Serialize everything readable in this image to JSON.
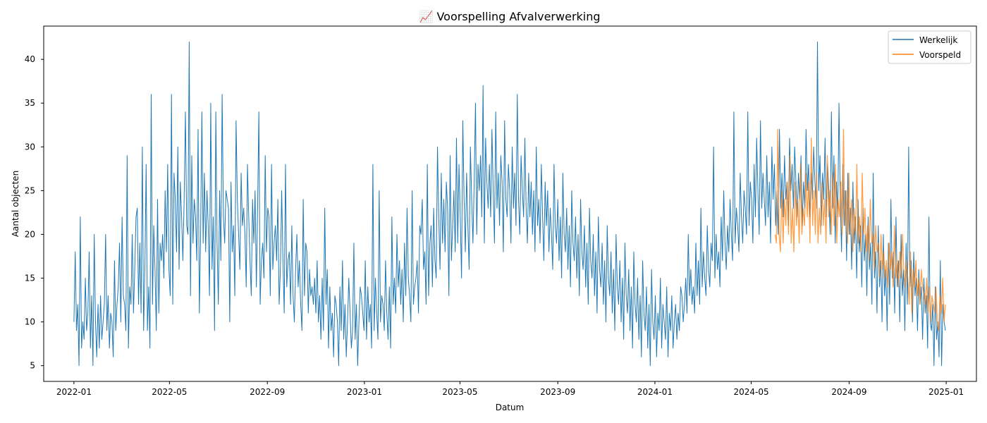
{
  "chart_data": {
    "type": "line",
    "title": "📈 Voorspelling Afvalverwerking",
    "xlabel": "Datum",
    "ylabel": "Aantal objecten",
    "xlim": [
      "2021-11-24",
      "2025-02-08"
    ],
    "ylim": [
      3.2,
      43.8
    ],
    "grid": false,
    "legend_position": "top-right",
    "x_ticks": [
      "2022-01",
      "2022-05",
      "2022-09",
      "2023-01",
      "2023-05",
      "2023-09",
      "2024-01",
      "2024-05",
      "2024-09",
      "2025-01"
    ],
    "y_ticks": [
      5,
      10,
      15,
      20,
      25,
      30,
      35,
      40
    ],
    "series": [
      {
        "name": "Werkelijk",
        "color": "#1f77b4",
        "x_start": "2022-01-01",
        "x_end": "2024-12-31",
        "values": [
          10,
          18,
          9,
          12,
          5,
          22,
          7,
          10,
          8,
          15,
          9,
          11,
          18,
          7,
          13,
          5,
          20,
          10,
          6,
          12,
          7,
          13,
          8,
          10,
          12,
          20,
          9,
          13,
          7,
          11,
          10,
          6,
          17,
          9,
          12,
          14,
          19,
          10,
          22,
          13,
          12,
          9,
          29,
          7,
          14,
          12,
          20,
          11,
          16,
          22,
          23,
          12,
          19,
          11,
          30,
          9,
          16,
          28,
          9,
          14,
          7,
          36,
          12,
          21,
          16,
          9,
          24,
          11,
          19,
          17,
          20,
          15,
          25,
          18,
          28,
          16,
          13,
          36,
          12,
          27,
          24,
          18,
          30,
          16,
          26,
          22,
          17,
          24,
          34,
          21,
          20,
          42,
          13,
          29,
          19,
          24,
          22,
          17,
          32,
          11,
          20,
          34,
          19,
          27,
          18,
          25,
          21,
          13,
          35,
          16,
          22,
          9,
          34,
          19,
          12,
          25,
          17,
          36,
          22,
          19,
          25,
          24,
          23,
          10,
          26,
          18,
          21,
          13,
          33,
          24,
          20,
          16,
          27,
          21,
          23,
          20,
          14,
          28,
          22,
          17,
          13,
          24,
          19,
          25,
          14,
          23,
          34,
          12,
          17,
          19,
          15,
          29,
          18,
          23,
          22,
          13,
          28,
          16,
          19,
          21,
          17,
          24,
          12,
          16,
          25,
          17,
          11,
          28,
          14,
          17,
          18,
          12,
          21,
          13,
          10,
          16,
          20,
          14,
          17,
          12,
          9,
          24,
          13,
          19,
          18,
          11,
          16,
          13,
          14,
          12,
          15,
          11,
          17,
          10,
          13,
          8,
          15,
          9,
          23,
          12,
          16,
          7,
          14,
          9,
          11,
          6,
          13,
          12,
          10,
          5,
          14,
          9,
          17,
          8,
          12,
          6,
          10,
          15,
          11,
          7,
          9,
          19,
          8,
          12,
          5,
          10,
          14,
          13,
          11,
          9,
          17,
          8,
          14,
          10,
          12,
          7,
          28,
          9,
          15,
          11,
          8,
          25,
          10,
          13,
          12,
          9,
          17,
          11,
          8,
          14,
          7,
          22,
          12,
          15,
          11,
          20,
          14,
          17,
          12,
          16,
          10,
          19,
          13,
          23,
          15,
          13,
          10,
          25,
          12,
          14,
          15,
          17,
          11,
          21,
          20,
          24,
          16,
          18,
          12,
          28,
          13,
          19,
          21,
          14,
          23,
          17,
          15,
          30,
          22,
          16,
          27,
          19,
          24,
          18,
          26,
          23,
          13,
          29,
          17,
          21,
          25,
          18,
          31,
          19,
          28,
          22,
          15,
          33,
          24,
          18,
          27,
          21,
          16,
          30,
          24,
          19,
          26,
          35,
          20,
          28,
          25,
          29,
          22,
          37,
          19,
          31,
          26,
          23,
          28,
          22,
          32,
          25,
          19,
          34,
          23,
          27,
          21,
          29,
          26,
          18,
          33,
          24,
          22,
          28,
          25,
          19,
          30,
          23,
          27,
          21,
          36,
          24,
          20,
          29,
          25,
          22,
          31,
          23,
          19,
          27,
          22,
          26,
          20,
          25,
          18,
          30,
          21,
          24,
          19,
          28,
          22,
          17,
          26,
          21,
          25,
          18,
          23,
          20,
          16,
          28,
          21,
          19,
          24,
          17,
          22,
          15,
          27,
          20,
          18,
          23,
          16,
          21,
          14,
          25,
          19,
          17,
          22,
          15,
          20,
          13,
          24,
          18,
          16,
          21,
          14,
          19,
          12,
          23,
          17,
          15,
          20,
          13,
          18,
          11,
          22,
          16,
          14,
          19,
          12,
          17,
          10,
          21,
          15,
          13,
          18,
          11,
          16,
          9,
          20,
          14,
          12,
          17,
          10,
          15,
          8,
          19,
          13,
          11,
          16,
          9,
          14,
          7,
          18,
          12,
          10,
          15,
          8,
          13,
          6,
          17,
          11,
          9,
          14,
          7,
          12,
          5,
          16,
          10,
          8,
          13,
          6,
          11,
          9,
          15,
          7,
          12,
          10,
          8,
          14,
          6,
          11,
          9,
          13,
          7,
          10,
          12,
          8,
          11,
          9,
          14,
          13,
          10,
          12,
          15,
          11,
          20,
          13,
          16,
          12,
          14,
          11,
          19,
          13,
          17,
          12,
          23,
          14,
          18,
          15,
          13,
          21,
          16,
          14,
          19,
          17,
          30,
          15,
          20,
          16,
          18,
          14,
          22,
          17,
          25,
          19,
          16,
          21,
          18,
          24,
          20,
          17,
          34,
          19,
          23,
          21,
          18,
          27,
          22,
          19,
          25,
          23,
          20,
          34,
          21,
          26,
          24,
          19,
          28,
          22,
          31,
          25,
          20,
          33,
          23,
          27,
          24,
          21,
          29,
          22,
          26,
          19,
          30,
          24,
          28,
          21,
          25,
          20,
          32,
          23,
          27,
          22,
          29,
          24,
          26,
          21,
          31,
          25,
          28,
          23,
          30,
          26,
          22,
          27,
          24,
          29,
          21,
          26,
          23,
          32,
          25,
          28,
          22,
          27,
          24,
          30,
          26,
          23,
          42,
          25,
          29,
          21,
          27,
          24,
          31,
          22,
          28,
          25,
          20,
          34,
          23,
          29,
          19,
          26,
          22,
          35,
          24,
          18,
          28,
          21,
          25,
          17,
          27,
          20,
          23,
          16,
          26,
          19,
          22,
          15,
          24,
          18,
          21,
          14,
          23,
          17,
          20,
          13,
          22,
          16,
          19,
          12,
          27,
          15,
          18,
          11,
          21,
          14,
          17,
          10,
          20,
          13,
          16,
          9,
          19,
          12,
          24,
          15,
          18,
          11,
          22,
          14,
          17,
          10,
          20,
          13,
          16,
          9,
          19,
          12,
          30,
          14,
          17,
          10,
          18,
          13,
          15,
          9,
          16,
          12,
          14,
          8,
          15,
          11,
          13,
          7,
          22,
          10,
          9,
          12,
          5,
          14,
          8,
          10,
          6,
          17,
          5,
          12,
          10,
          9
        ],
        "note_unused": ""
      },
      {
        "name": "Voorspeld",
        "color": "#ff7f0e",
        "x_start": "2024-05-31",
        "x_end": "2024-12-31",
        "values": [
          20,
          19,
          32,
          20,
          18,
          25,
          19,
          24,
          21,
          26,
          20,
          29,
          19,
          23,
          18,
          26,
          21,
          24,
          19,
          28,
          20,
          23,
          21,
          27,
          22,
          26,
          19,
          31,
          21,
          25,
          20,
          27,
          19,
          23,
          20,
          26,
          21,
          24,
          19,
          29,
          22,
          25,
          20,
          27,
          21,
          28,
          19,
          24,
          22,
          26,
          20,
          32,
          21,
          25,
          19,
          27,
          20,
          24,
          18,
          23,
          20,
          28,
          19,
          22,
          18,
          27,
          20,
          23,
          18,
          21,
          17,
          24,
          19,
          20,
          16,
          21,
          18,
          19,
          15,
          20,
          16,
          18,
          15,
          17,
          14,
          19,
          16,
          18,
          14,
          21,
          15,
          17,
          14,
          18,
          15,
          20,
          16,
          14,
          17,
          15,
          12,
          18,
          11,
          16,
          14,
          17,
          13,
          15,
          12,
          16,
          14,
          13,
          12,
          15,
          11,
          14,
          10,
          13,
          12,
          11,
          14,
          10,
          9,
          13,
          11,
          15,
          10,
          12
        ]
      }
    ]
  }
}
